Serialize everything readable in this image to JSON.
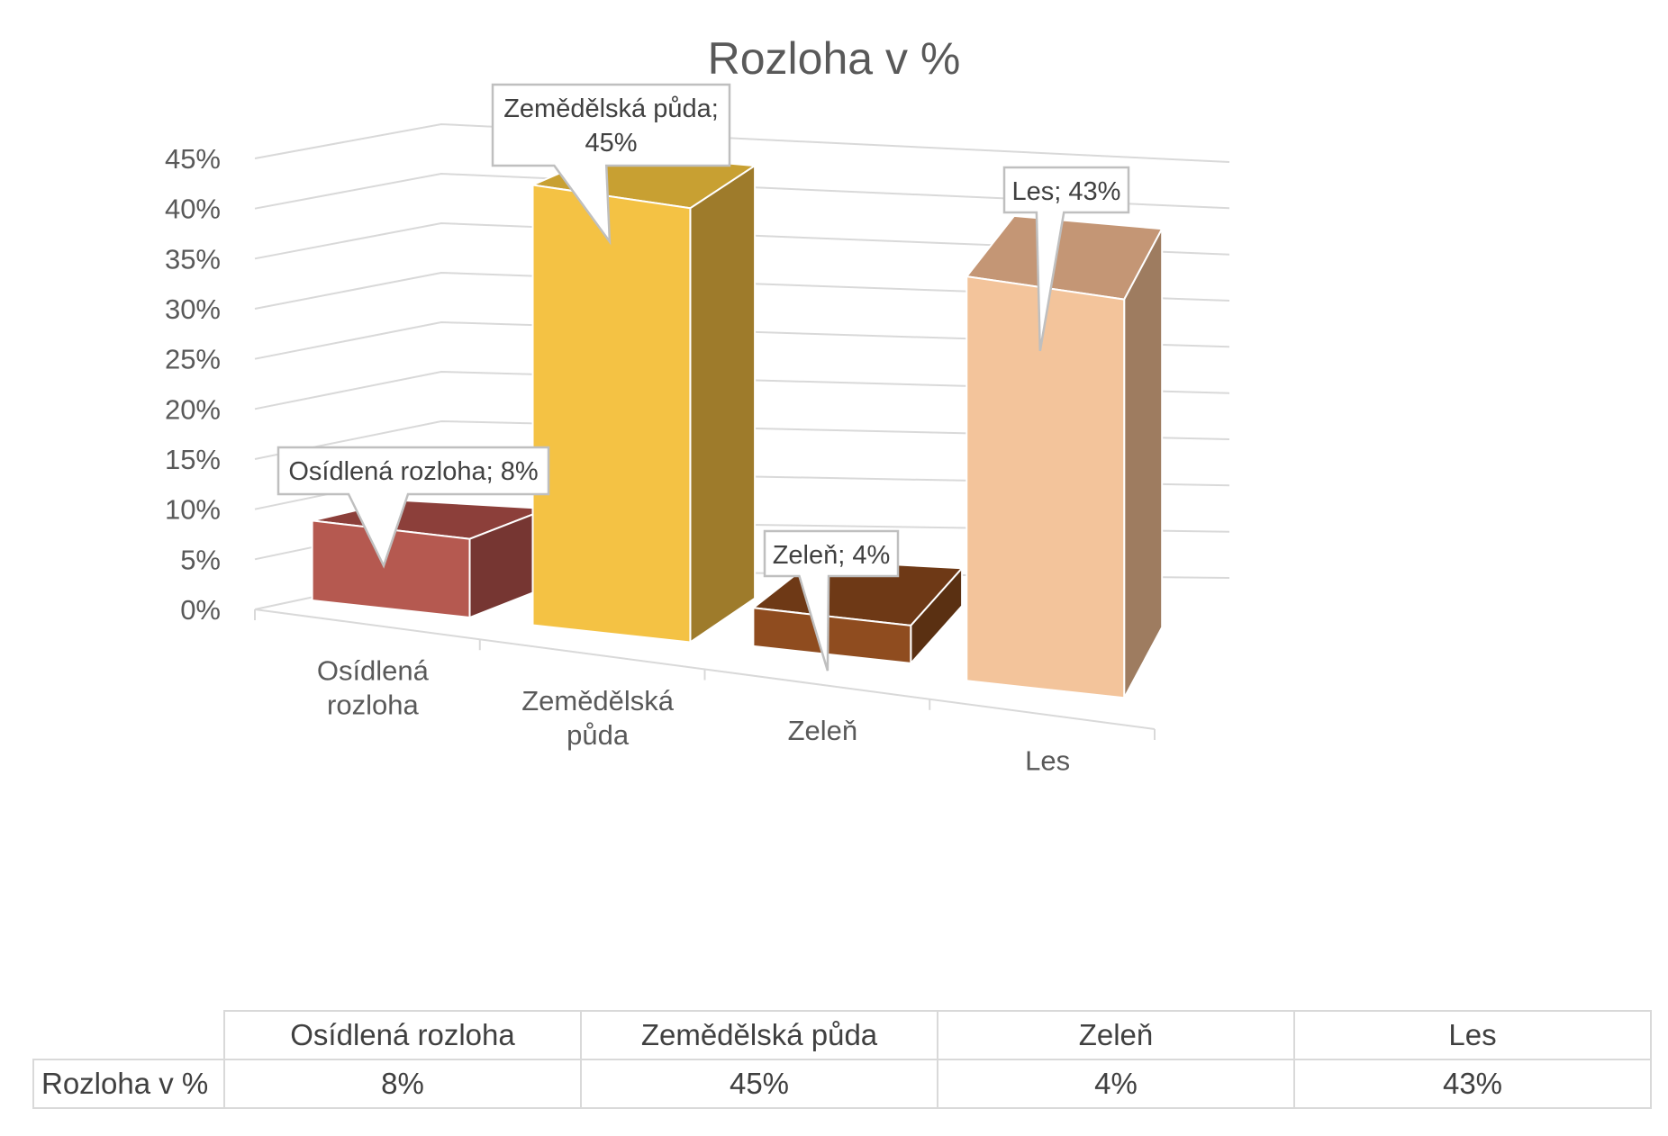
{
  "chart_data": {
    "type": "bar",
    "title": "Rozloha v %",
    "categories": [
      "Osídlená rozloha",
      "Zemědělská půda",
      "Zeleň",
      "Les"
    ],
    "category_axis_labels": [
      [
        "Osídlená",
        "rozloha"
      ],
      [
        "Zemědělská",
        "půda"
      ],
      [
        "Zeleň"
      ],
      [
        "Les"
      ]
    ],
    "series": [
      {
        "name": "Rozloha v %",
        "values": [
          8,
          45,
          4,
          43
        ]
      }
    ],
    "data_labels": [
      [
        "Osídlená rozloha; 8%"
      ],
      [
        "Zemědělská půda;",
        "45%"
      ],
      [
        "Zeleň; 4%"
      ],
      [
        "Les; 43%"
      ]
    ],
    "y_ticks": [
      "0%",
      "5%",
      "10%",
      "15%",
      "20%",
      "25%",
      "30%",
      "35%",
      "40%",
      "45%"
    ],
    "ylim": [
      0,
      45
    ],
    "grid": true,
    "style": "3d-column",
    "colors": {
      "Osídlená rozloha": {
        "front": "#b55950",
        "side": "#763632",
        "top": "#8c3f3a"
      },
      "Zemědělská půda": {
        "front": "#f4c244",
        "side": "#9e7b2b",
        "top": "#c8a032"
      },
      "Zeleň": {
        "front": "#8f4c1f",
        "side": "#5a3012",
        "top": "#6e3916"
      },
      "Les": {
        "front": "#f3c49b",
        "side": "#9e7c60",
        "top": "#c49675"
      }
    }
  },
  "table": {
    "row_header": "Rozloha v %",
    "columns": [
      "Osídlená rozloha",
      "Zemědělská půda",
      "Zeleň",
      "Les"
    ],
    "values": [
      "8%",
      "45%",
      "4%",
      "43%"
    ]
  }
}
